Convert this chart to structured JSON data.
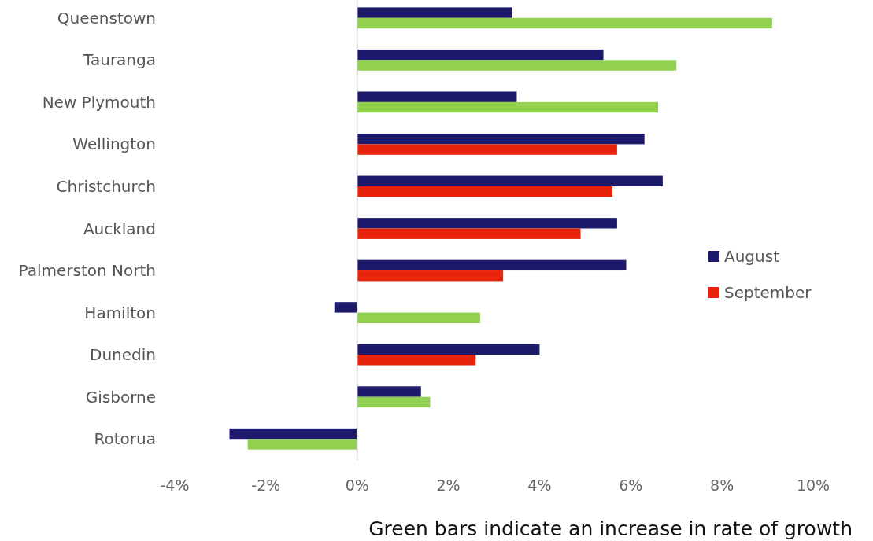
{
  "chart_data": {
    "type": "bar",
    "orientation": "horizontal",
    "categories": [
      "Queenstown",
      "Tauranga",
      "New Plymouth",
      "Wellington",
      "Christchurch",
      "Auckland",
      "Palmerston North",
      "Hamilton",
      "Dunedin",
      "Gisborne",
      "Rotorua"
    ],
    "series": [
      {
        "name": "August",
        "color": "#1d1a6c",
        "values": [
          3.4,
          5.4,
          3.5,
          6.3,
          6.7,
          5.7,
          5.9,
          -0.5,
          4.0,
          1.4,
          -2.8
        ]
      },
      {
        "name": "September",
        "color": "#e8230a",
        "colors": [
          "#92d050",
          "#92d050",
          "#92d050",
          "#e8230a",
          "#e8230a",
          "#e8230a",
          "#e8230a",
          "#92d050",
          "#e8230a",
          "#92d050",
          "#92d050"
        ],
        "values": [
          9.1,
          7.0,
          6.6,
          5.7,
          5.6,
          4.9,
          3.2,
          2.7,
          2.6,
          1.6,
          -2.4
        ]
      }
    ],
    "xlim": [
      -4,
      10
    ],
    "xticks": [
      {
        "value": -4,
        "label": "-4%"
      },
      {
        "value": -2,
        "label": "-2%"
      },
      {
        "value": 0,
        "label": "0%"
      },
      {
        "value": 2,
        "label": "2%"
      },
      {
        "value": 4,
        "label": "4%"
      },
      {
        "value": 6,
        "label": "6%"
      },
      {
        "value": 8,
        "label": "8%"
      },
      {
        "value": 10,
        "label": "10%"
      }
    ],
    "legend": "right",
    "annotations": [
      "Green bars indicate an increase in rate of growth"
    ]
  }
}
